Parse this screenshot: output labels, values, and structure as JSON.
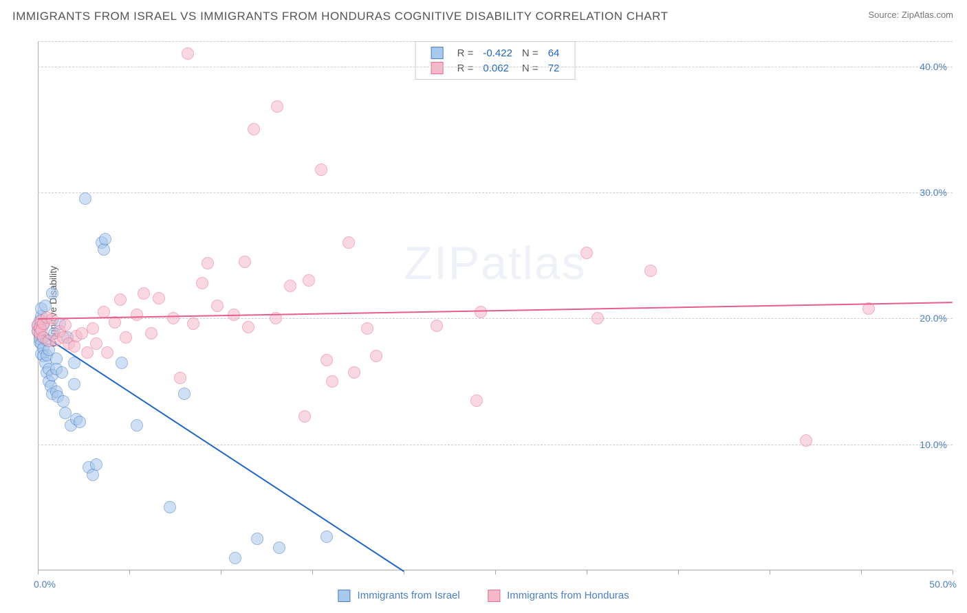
{
  "title": "IMMIGRANTS FROM ISRAEL VS IMMIGRANTS FROM HONDURAS COGNITIVE DISABILITY CORRELATION CHART",
  "source_label": "Source: ZipAtlas.com",
  "ylabel": "Cognitive Disability",
  "watermark": "ZIPatlas",
  "chart": {
    "type": "scatter",
    "xlim": [
      0,
      50
    ],
    "ylim": [
      0,
      42
    ],
    "x_ticks": [
      0,
      5,
      10,
      15,
      20,
      25,
      30,
      35,
      40,
      45,
      50
    ],
    "x_tick_labels": {
      "0": "0.0%",
      "50": "50.0%"
    },
    "y_gridlines": [
      10,
      20,
      30,
      40
    ],
    "y_tick_labels": [
      "10.0%",
      "20.0%",
      "30.0%",
      "40.0%"
    ],
    "background_color": "#ffffff",
    "grid_color": "#cccccc",
    "axis_color": "#aaaaaa",
    "tick_label_color": "#4a7ec9",
    "marker_radius": 9,
    "marker_opacity": 0.55,
    "marker_border_width": 1
  },
  "series": [
    {
      "name": "Immigrants from Israel",
      "fill_color": "#a8c8ec",
      "border_color": "#4a7ec9",
      "line_color": "#1e66c7",
      "R_label": "R =",
      "R": "-0.422",
      "N_label": "N =",
      "N": "64",
      "trend": {
        "x1": 0,
        "y1": 19.0,
        "x2": 20,
        "y2": 0
      },
      "points": [
        [
          0.0,
          19.0
        ],
        [
          0.0,
          19.4
        ],
        [
          0.1,
          18.6
        ],
        [
          0.1,
          18.1
        ],
        [
          0.1,
          19.8
        ],
        [
          0.1,
          19.2
        ],
        [
          0.1,
          18.4
        ],
        [
          0.2,
          20.2
        ],
        [
          0.2,
          18.0
        ],
        [
          0.2,
          17.2
        ],
        [
          0.2,
          20.8
        ],
        [
          0.3,
          19.5
        ],
        [
          0.3,
          17.6
        ],
        [
          0.3,
          18.5
        ],
        [
          0.3,
          17.0
        ],
        [
          0.4,
          16.5
        ],
        [
          0.4,
          21.0
        ],
        [
          0.5,
          18.3
        ],
        [
          0.5,
          17.1
        ],
        [
          0.5,
          15.7
        ],
        [
          0.6,
          16.0
        ],
        [
          0.6,
          15.0
        ],
        [
          0.6,
          17.5
        ],
        [
          0.7,
          14.6
        ],
        [
          0.8,
          22.0
        ],
        [
          0.8,
          15.5
        ],
        [
          0.8,
          14.0
        ],
        [
          0.9,
          18.8
        ],
        [
          1.0,
          16.8
        ],
        [
          1.0,
          16.0
        ],
        [
          1.0,
          14.2
        ],
        [
          1.1,
          13.8
        ],
        [
          1.2,
          19.6
        ],
        [
          1.3,
          15.7
        ],
        [
          1.4,
          13.4
        ],
        [
          1.5,
          12.5
        ],
        [
          1.6,
          18.5
        ],
        [
          1.8,
          11.5
        ],
        [
          2.0,
          16.5
        ],
        [
          2.0,
          14.8
        ],
        [
          2.1,
          12.0
        ],
        [
          2.3,
          11.8
        ],
        [
          2.6,
          29.5
        ],
        [
          2.8,
          8.2
        ],
        [
          3.0,
          7.6
        ],
        [
          3.2,
          8.4
        ],
        [
          3.5,
          26.0
        ],
        [
          3.6,
          25.5
        ],
        [
          3.7,
          26.3
        ],
        [
          4.6,
          16.5
        ],
        [
          5.4,
          11.5
        ],
        [
          7.2,
          5.0
        ],
        [
          8.0,
          14.0
        ],
        [
          10.8,
          1.0
        ],
        [
          12.0,
          2.5
        ],
        [
          13.2,
          1.8
        ],
        [
          15.8,
          2.7
        ]
      ]
    },
    {
      "name": "Immigrants from Honduras",
      "fill_color": "#f5b9ca",
      "border_color": "#e86e93",
      "line_color": "#e85d8a",
      "R_label": "R =",
      "R": "0.062",
      "N_label": "N =",
      "N": "72",
      "trend": {
        "x1": 0,
        "y1": 20.0,
        "x2": 50,
        "y2": 21.3
      },
      "points": [
        [
          0.0,
          19.5
        ],
        [
          0.0,
          19.0
        ],
        [
          0.1,
          19.3
        ],
        [
          0.1,
          18.8
        ],
        [
          0.2,
          19.8
        ],
        [
          0.2,
          19.1
        ],
        [
          0.3,
          19.6
        ],
        [
          0.3,
          18.5
        ],
        [
          0.5,
          20.1
        ],
        [
          0.6,
          18.2
        ],
        [
          0.8,
          19.9
        ],
        [
          1.0,
          18.3
        ],
        [
          1.2,
          19.0
        ],
        [
          1.4,
          18.5
        ],
        [
          1.5,
          19.5
        ],
        [
          1.7,
          18.0
        ],
        [
          2.0,
          17.8
        ],
        [
          2.1,
          18.6
        ],
        [
          2.4,
          18.8
        ],
        [
          2.7,
          17.3
        ],
        [
          3.0,
          19.2
        ],
        [
          3.2,
          18.0
        ],
        [
          3.6,
          20.5
        ],
        [
          3.8,
          17.3
        ],
        [
          4.2,
          19.7
        ],
        [
          4.5,
          21.5
        ],
        [
          4.8,
          18.5
        ],
        [
          5.4,
          20.3
        ],
        [
          5.8,
          22.0
        ],
        [
          6.2,
          18.8
        ],
        [
          6.6,
          21.6
        ],
        [
          7.4,
          20.0
        ],
        [
          7.8,
          15.3
        ],
        [
          8.2,
          41.0
        ],
        [
          8.5,
          19.6
        ],
        [
          9.0,
          22.8
        ],
        [
          9.3,
          24.4
        ],
        [
          9.8,
          21.0
        ],
        [
          10.7,
          20.3
        ],
        [
          11.3,
          24.5
        ],
        [
          11.5,
          19.3
        ],
        [
          11.8,
          35.0
        ],
        [
          13.0,
          20.0
        ],
        [
          13.1,
          36.8
        ],
        [
          13.8,
          22.6
        ],
        [
          14.6,
          12.2
        ],
        [
          14.8,
          23.0
        ],
        [
          15.5,
          31.8
        ],
        [
          15.8,
          16.7
        ],
        [
          16.1,
          15.0
        ],
        [
          17.0,
          26.0
        ],
        [
          17.3,
          15.7
        ],
        [
          18.0,
          19.2
        ],
        [
          18.5,
          17.0
        ],
        [
          21.8,
          19.4
        ],
        [
          24.0,
          13.5
        ],
        [
          24.2,
          20.5
        ],
        [
          30.0,
          25.2
        ],
        [
          30.6,
          20.0
        ],
        [
          33.5,
          23.8
        ],
        [
          42.0,
          10.3
        ],
        [
          45.4,
          20.8
        ]
      ]
    }
  ],
  "bottom_legend": [
    {
      "label": "Immigrants from Israel",
      "fill": "#a8c8ec",
      "border": "#4a7ec9"
    },
    {
      "label": "Immigrants from Honduras",
      "fill": "#f5b9ca",
      "border": "#e86e93"
    }
  ]
}
